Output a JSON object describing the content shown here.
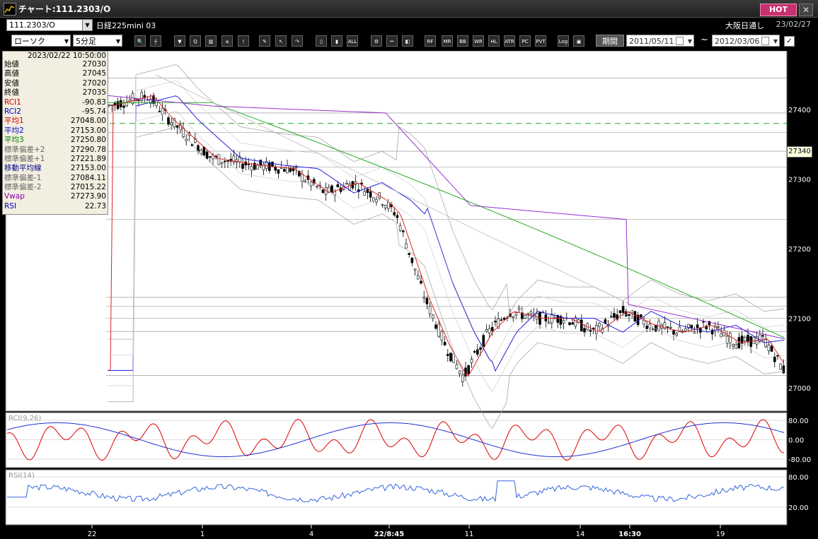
{
  "window": {
    "title": "チャート:111.2303/O",
    "hot_label": "HOT",
    "close_label": "✕"
  },
  "header": {
    "symbol": "111.2303/O",
    "instrument": "日経225mini 03",
    "session": "大阪日通し",
    "date": "23/02/27"
  },
  "toolbar": {
    "chart_type": "ローソク",
    "interval": "5分足",
    "buttons": [
      "zoom-in",
      "crosshair",
      "buy",
      "query",
      "tick",
      "plus-minus",
      "alert",
      "pen",
      "cursor",
      "redo",
      "bar1",
      "bar2",
      "all",
      "gear",
      "wrench",
      "palette",
      "rf",
      "mr",
      "bb",
      "wre",
      "hl",
      "atr",
      "pa-ca",
      "pvt",
      "log",
      "export"
    ],
    "period_label": "期間",
    "date_from": "2011/05/11",
    "date_sep": "~",
    "date_to": "2012/03/06"
  },
  "info_panel": {
    "datetime": "2023/02/22  10:50:00",
    "rows": [
      {
        "label": "始値",
        "value": "27030",
        "color": "#000000"
      },
      {
        "label": "高値",
        "value": "27045",
        "color": "#000000"
      },
      {
        "label": "安値",
        "value": "27020",
        "color": "#000000"
      },
      {
        "label": "終値",
        "value": "27035",
        "color": "#000000"
      },
      {
        "label": "RCI1",
        "value": "-90.83",
        "color": "#cc0000"
      },
      {
        "label": "RCI2",
        "value": "-95.74",
        "color": "#0000cc"
      },
      {
        "label": "平均1",
        "value": "27048.00",
        "color": "#cc0000"
      },
      {
        "label": "平均2",
        "value": "27153.00",
        "color": "#0000cc"
      },
      {
        "label": "平均3",
        "value": "27250.80",
        "color": "#007700"
      },
      {
        "label": "標準偏差+2",
        "value": "27290.78",
        "color": "#666666"
      },
      {
        "label": "標準偏差+1",
        "value": "27221.89",
        "color": "#666666"
      },
      {
        "label": "移動平均線",
        "value": "27153.00",
        "color": "#000088"
      },
      {
        "label": "標準偏差-1",
        "value": "27084.11",
        "color": "#666666"
      },
      {
        "label": "標準偏差-2",
        "value": "27015.22",
        "color": "#666666"
      },
      {
        "label": "Vwap",
        "value": "27273.90",
        "color": "#8800aa"
      },
      {
        "label": "RSI",
        "value": "22.73",
        "color": "#0000cc"
      }
    ]
  },
  "current_price": "27340",
  "price_axis": [
    "27400",
    "27300",
    "27200",
    "27100",
    "27000"
  ],
  "rci_panel": {
    "label": "RCI(9,26)",
    "ticks": [
      "80.00",
      "0.00",
      "-80.00"
    ]
  },
  "rsi_panel": {
    "label": "RSI(14)",
    "ticks": [
      "80.00",
      "20.00"
    ]
  },
  "time_axis": [
    "22",
    "1",
    "4",
    "22/8:45",
    "11",
    "14",
    "16:30",
    "19"
  ],
  "colors": {
    "bg": "#000000",
    "grid": "#888888",
    "ma1": "#dd2222",
    "ma2": "#2222dd",
    "ma3": "#22aa22",
    "vwap": "#9933cc",
    "band": "#aaaaaa",
    "rci1": "#dd0000",
    "rci2": "#2233cc",
    "rsi": "#3366dd",
    "dashed": "#22aa22"
  }
}
